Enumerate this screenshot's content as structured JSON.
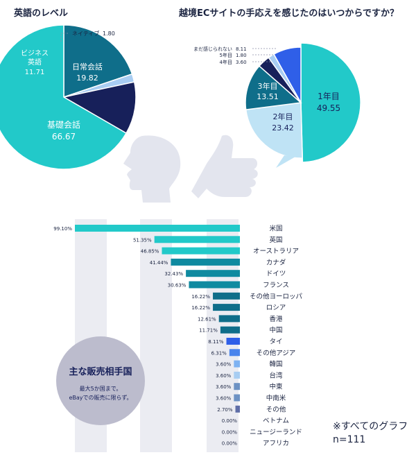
{
  "chart_data": [
    {
      "type": "pie",
      "title": "英語のレベル",
      "slices": [
        {
          "label": "日常会話",
          "value": 19.82,
          "color": "#0f6e8a"
        },
        {
          "label": "ネイティブ",
          "value": 1.8,
          "color": "#a8cdf2"
        },
        {
          "label": "ビジネス\n英語",
          "value": 11.71,
          "color": "#17205a"
        },
        {
          "label": "基礎会話",
          "value": 66.67,
          "color": "#22c9c9"
        }
      ]
    },
    {
      "type": "pie",
      "title": "越境ECサイトの手応えを感じたのはいつからですか？",
      "slices": [
        {
          "label": "1年目",
          "value": 49.55,
          "color": "#22c9c9"
        },
        {
          "label": "2年目",
          "value": 23.42,
          "color": "#bfe3f5"
        },
        {
          "label": "3年目",
          "value": 13.51,
          "color": "#0f6e8a"
        },
        {
          "label": "4年目",
          "value": 3.6,
          "color": "#17205a"
        },
        {
          "label": "5年目",
          "value": 1.8,
          "color": "#a8cdf2"
        },
        {
          "label": "まだ感じられない",
          "value": 8.11,
          "color": "#2f5fe8"
        }
      ]
    },
    {
      "type": "bar",
      "orientation": "horizontal",
      "title": "主な販売相手国",
      "subtitle": "最大5か国まで。\neBayでの販売に限らず。",
      "categories": [
        "米国",
        "英国",
        "オーストラリア",
        "カナダ",
        "ドイツ",
        "フランス",
        "その他ヨーロッパ",
        "ロシア",
        "香港",
        "中国",
        "タイ",
        "その他アジア",
        "韓国",
        "台湾",
        "中東",
        "中南米",
        "その他",
        "ベトナム",
        "ニュージーランド",
        "アフリカ"
      ],
      "values": [
        99.1,
        51.35,
        46.85,
        41.44,
        32.43,
        30.63,
        16.22,
        16.22,
        12.61,
        11.71,
        8.11,
        6.31,
        3.6,
        3.6,
        3.6,
        3.6,
        2.7,
        0.0,
        0.0,
        0.0
      ],
      "colors": [
        "#22c9c9",
        "#22c9c9",
        "#22c9c9",
        "#0f8aa0",
        "#0f8aa0",
        "#0f8aa0",
        "#0f6e8a",
        "#0f6e8a",
        "#0f6e8a",
        "#0f6e8a",
        "#2f5fe8",
        "#4a84ec",
        "#7eb2f2",
        "#a8cdf2",
        "#6d92c4",
        "#6d92c4",
        "#5f6ea8",
        "#5f6ea8",
        "#5f6ea8",
        "#5f6ea8"
      ],
      "value_suffix": "%"
    }
  ],
  "note": {
    "line1": "※すべてのグラフ",
    "line2": "n=111"
  }
}
